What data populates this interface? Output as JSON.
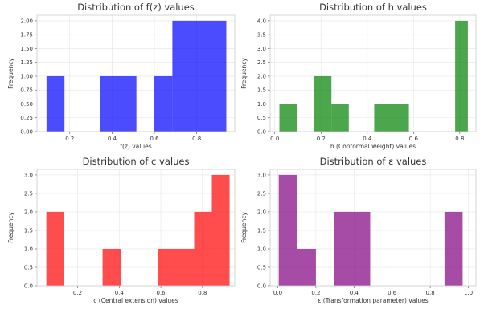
{
  "chart_data": [
    {
      "type": "bar",
      "title": "Distribution of f(z) values",
      "xlabel": "f(z) values",
      "ylabel": "Frequency",
      "color": "#0000ff",
      "xlim": [
        0.045,
        0.98
      ],
      "ylim": [
        0,
        2.1
      ],
      "xticks": [
        "0.2",
        "0.4",
        "0.6",
        "0.8"
      ],
      "yticks": [
        "0.00",
        "0.25",
        "0.50",
        "0.75",
        "1.00",
        "1.25",
        "1.50",
        "1.75",
        "2.00"
      ],
      "bins": [
        {
          "from": 0.09,
          "to": 0.175,
          "count": 1
        },
        {
          "from": 0.345,
          "to": 0.515,
          "count": 1
        },
        {
          "from": 0.6,
          "to": 0.685,
          "count": 1
        },
        {
          "from": 0.685,
          "to": 0.94,
          "count": 2
        }
      ],
      "grid": true
    },
    {
      "type": "bar",
      "title": "Distribution of h values",
      "xlabel": "h (Conformal weight) values",
      "ylabel": "Frequency",
      "color": "#008000",
      "xlim": [
        -0.02,
        0.87
      ],
      "ylim": [
        0,
        4.2
      ],
      "xticks": [
        "0.0",
        "0.2",
        "0.4",
        "0.6",
        "0.8"
      ],
      "yticks": [
        "0.0",
        "0.5",
        "1.0",
        "1.5",
        "2.0",
        "2.5",
        "3.0",
        "3.5",
        "4.0"
      ],
      "bins": [
        {
          "from": 0.02,
          "to": 0.095,
          "count": 1
        },
        {
          "from": 0.17,
          "to": 0.245,
          "count": 2
        },
        {
          "from": 0.245,
          "to": 0.32,
          "count": 1
        },
        {
          "from": 0.43,
          "to": 0.58,
          "count": 1
        },
        {
          "from": 0.78,
          "to": 0.835,
          "count": 4
        }
      ],
      "grid": true
    },
    {
      "type": "bar",
      "title": "Distribution of c values",
      "xlabel": "c (Central extension) values",
      "ylabel": "Frequency",
      "color": "#ff0000",
      "xlim": [
        0.005,
        0.955
      ],
      "ylim": [
        0,
        3.15
      ],
      "xticks": [
        "0.2",
        "0.4",
        "0.6",
        "0.8"
      ],
      "yticks": [
        "0.0",
        "0.5",
        "1.0",
        "1.5",
        "2.0",
        "2.5",
        "3.0"
      ],
      "bins": [
        {
          "from": 0.05,
          "to": 0.135,
          "count": 2
        },
        {
          "from": 0.32,
          "to": 0.41,
          "count": 1
        },
        {
          "from": 0.585,
          "to": 0.76,
          "count": 1
        },
        {
          "from": 0.76,
          "to": 0.845,
          "count": 2
        },
        {
          "from": 0.845,
          "to": 0.93,
          "count": 3
        }
      ],
      "grid": true
    },
    {
      "type": "bar",
      "title": "Distribution of ε values",
      "xlabel": "ε (Transformation parameter) values",
      "ylabel": "Frequency",
      "color": "#800080",
      "xlim": [
        -0.04,
        1.04
      ],
      "ylim": [
        0,
        3.15
      ],
      "xticks": [
        "0.0",
        "0.2",
        "0.4",
        "0.6",
        "0.8",
        "1.0"
      ],
      "yticks": [
        "0.0",
        "0.5",
        "1.0",
        "1.5",
        "2.0",
        "2.5",
        "3.0"
      ],
      "bins": [
        {
          "from": 0.005,
          "to": 0.1,
          "count": 3
        },
        {
          "from": 0.1,
          "to": 0.2,
          "count": 1
        },
        {
          "from": 0.295,
          "to": 0.485,
          "count": 2
        },
        {
          "from": 0.875,
          "to": 0.97,
          "count": 2
        }
      ],
      "grid": true
    }
  ]
}
